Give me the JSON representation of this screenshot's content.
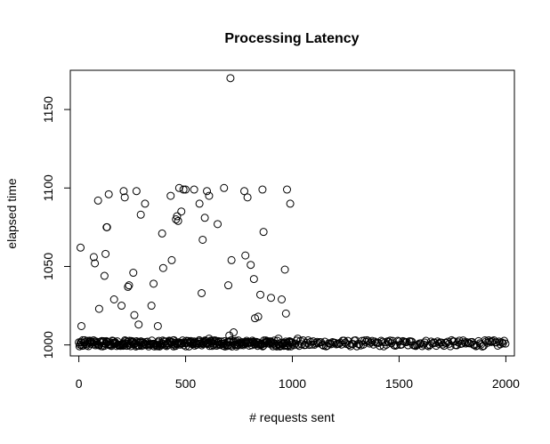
{
  "chart_data": {
    "type": "scatter",
    "title": "Processing Latency",
    "xlabel": "# requests sent",
    "ylabel": "elapsed time",
    "xlim": [
      -40,
      2040
    ],
    "ylim": [
      993,
      1175
    ],
    "xticks": [
      0,
      500,
      1000,
      1500,
      2000
    ],
    "yticks": [
      1000,
      1050,
      1100,
      1150
    ],
    "grid": false,
    "legend": "none",
    "marker": "open-circle",
    "outliers": [
      [
        8,
        1062
      ],
      [
        12,
        1012
      ],
      [
        70,
        1056
      ],
      [
        75,
        1052
      ],
      [
        90,
        1092
      ],
      [
        95,
        1023
      ],
      [
        120,
        1044
      ],
      [
        125,
        1058
      ],
      [
        130,
        1075
      ],
      [
        132,
        1075
      ],
      [
        140,
        1096
      ],
      [
        165,
        1029
      ],
      [
        200,
        1025
      ],
      [
        210,
        1098
      ],
      [
        215,
        1094
      ],
      [
        230,
        1037
      ],
      [
        235,
        1038
      ],
      [
        255,
        1046
      ],
      [
        260,
        1019
      ],
      [
        270,
        1098
      ],
      [
        280,
        1013
      ],
      [
        290,
        1083
      ],
      [
        310,
        1090
      ],
      [
        340,
        1025
      ],
      [
        350,
        1039
      ],
      [
        370,
        1012
      ],
      [
        390,
        1071
      ],
      [
        395,
        1049
      ],
      [
        430,
        1095
      ],
      [
        435,
        1054
      ],
      [
        455,
        1080
      ],
      [
        460,
        1082
      ],
      [
        465,
        1079
      ],
      [
        470,
        1100
      ],
      [
        480,
        1085
      ],
      [
        490,
        1099
      ],
      [
        500,
        1099
      ],
      [
        540,
        1099
      ],
      [
        565,
        1090
      ],
      [
        575,
        1033
      ],
      [
        580,
        1067
      ],
      [
        590,
        1081
      ],
      [
        600,
        1098
      ],
      [
        610,
        1095
      ],
      [
        650,
        1077
      ],
      [
        680,
        1100
      ],
      [
        700,
        1038
      ],
      [
        705,
        1006
      ],
      [
        710,
        1170
      ],
      [
        715,
        1054
      ],
      [
        725,
        1008
      ],
      [
        775,
        1098
      ],
      [
        780,
        1057
      ],
      [
        790,
        1094
      ],
      [
        805,
        1051
      ],
      [
        820,
        1042
      ],
      [
        825,
        1017
      ],
      [
        840,
        1018
      ],
      [
        850,
        1032
      ],
      [
        860,
        1099
      ],
      [
        865,
        1072
      ],
      [
        900,
        1030
      ],
      [
        935,
        1004
      ],
      [
        950,
        1029
      ],
      [
        965,
        1048
      ],
      [
        970,
        1020
      ],
      [
        975,
        1099
      ],
      [
        990,
        1090
      ],
      [
        445,
        1003
      ],
      [
        610,
        1004
      ],
      [
        1025,
        1004
      ]
    ],
    "baseline": {
      "x_start": 0,
      "x_end": 2000,
      "value": 1001,
      "spread": [
        999,
        1003
      ]
    }
  }
}
